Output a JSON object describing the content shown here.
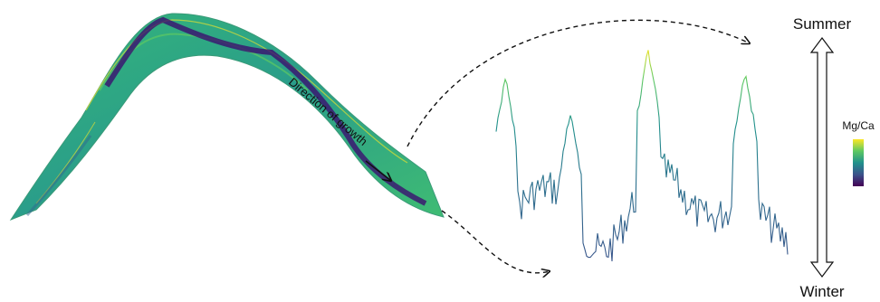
{
  "labels": {
    "growth": "Direction of growth",
    "summer": "Summer",
    "winter": "Winter",
    "colorbar": "Mg/Ca"
  }
}
